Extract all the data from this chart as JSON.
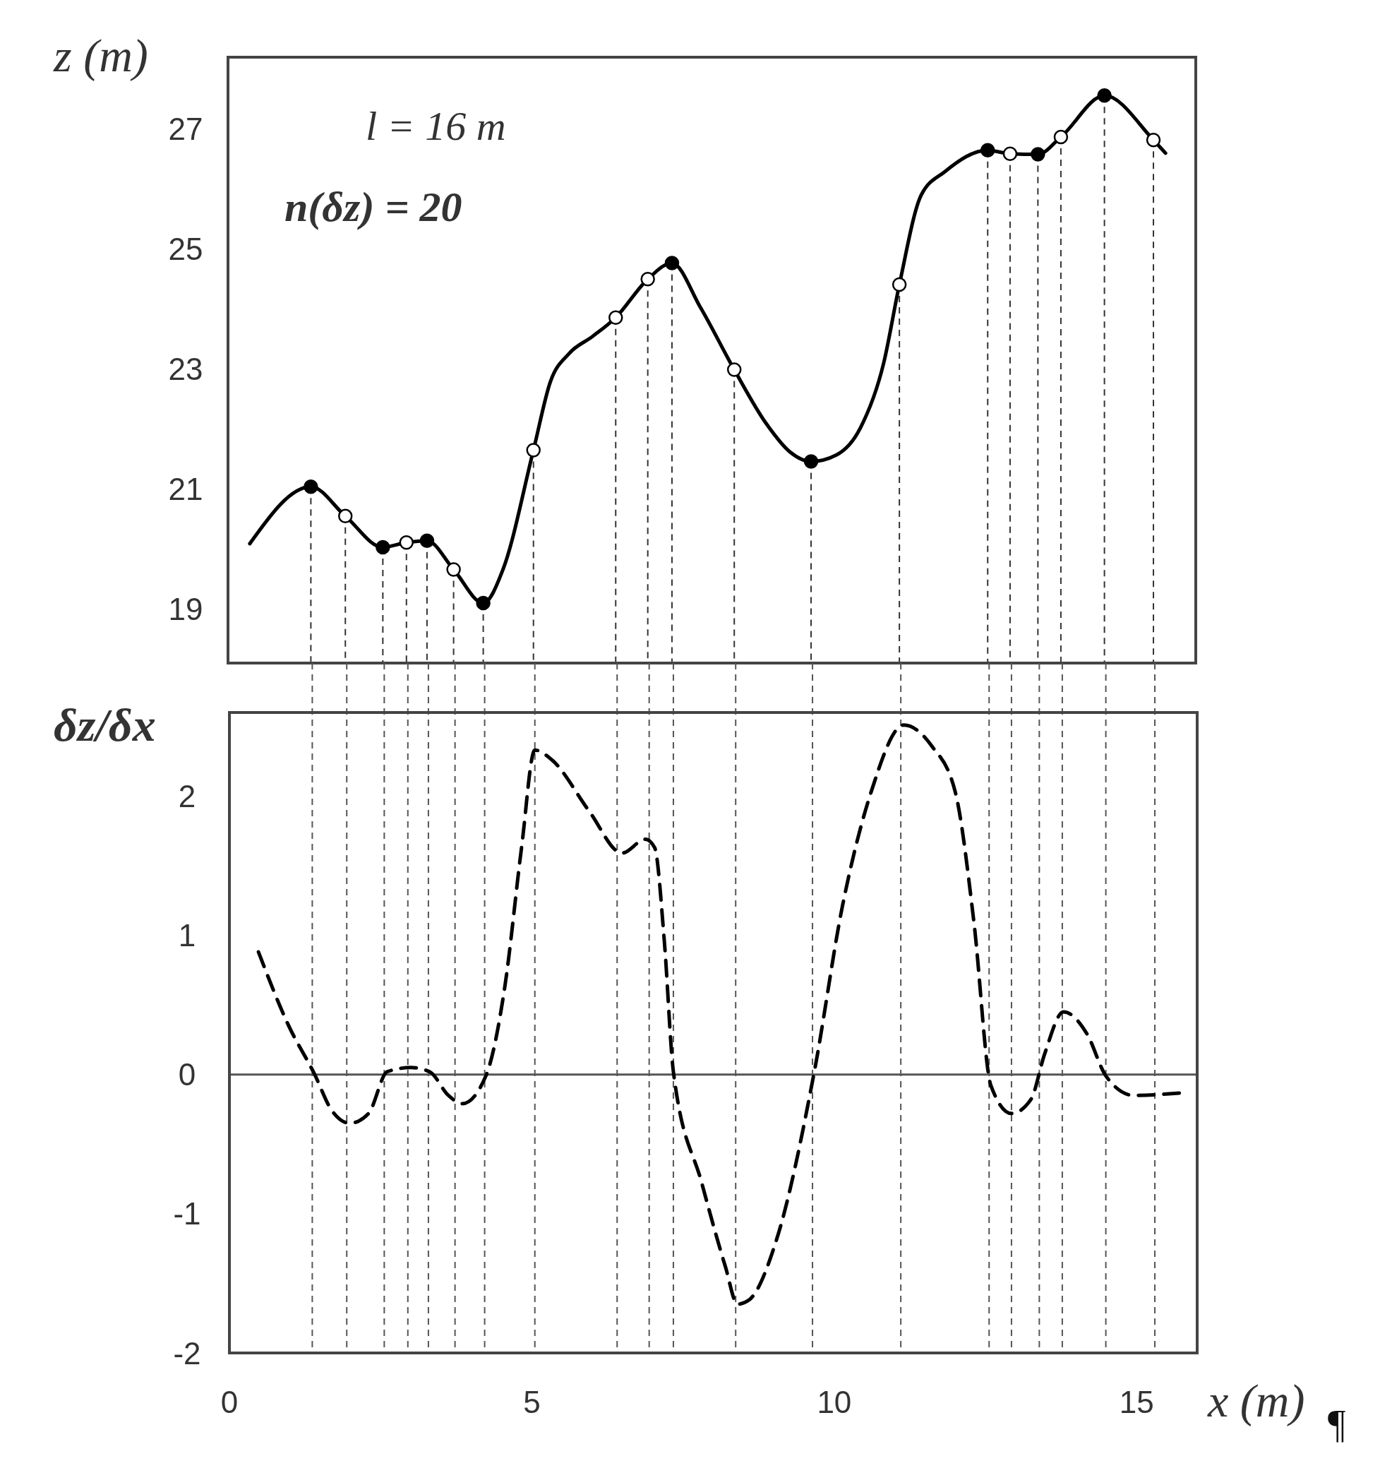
{
  "chart_data": [
    {
      "type": "line",
      "ylabel": "z (m)",
      "xlim": [
        0,
        16
      ],
      "ylim": [
        18.1,
        28.2
      ],
      "yticks": [
        19,
        21,
        23,
        25,
        27
      ],
      "tick_labels": "y",
      "annotations": [
        "l = 16 m",
        "n(δz) = 20"
      ],
      "series": [
        {
          "color": "#000000",
          "line_style": "solid",
          "x": [
            0.36,
            1.37,
            1.94,
            2.56,
            2.95,
            3.29,
            3.73,
            4.22,
            4.55,
            5.05,
            5.33,
            5.64,
            6.02,
            6.41,
            6.94,
            7.34,
            7.81,
            8.37,
            8.9,
            9.29,
            9.64,
            10.06,
            10.45,
            10.84,
            11.1,
            11.46,
            11.85,
            12.56,
            12.93,
            13.39,
            13.77,
            14.49,
            15.3,
            15.5
          ],
          "values": [
            20.09,
            21.04,
            20.55,
            20.03,
            20.11,
            20.14,
            19.66,
            19.1,
            19.67,
            21.65,
            22.79,
            23.26,
            23.54,
            23.86,
            24.5,
            24.77,
            24.03,
            22.99,
            22.09,
            21.62,
            21.46,
            21.57,
            22.01,
            23.1,
            24.41,
            25.9,
            26.29,
            26.65,
            26.59,
            26.58,
            26.87,
            27.56,
            26.82,
            26.6
          ]
        },
        {
          "type": "lollipop",
          "color": "#000000",
          "line_style": "dashed",
          "marker": "circle",
          "x": [
            1.37,
            2.56,
            3.29,
            4.22,
            7.34,
            9.64,
            12.56,
            13.39,
            14.49
          ],
          "values": [
            21.04,
            20.03,
            20.14,
            19.1,
            24.77,
            21.46,
            26.65,
            26.58,
            27.56
          ]
        },
        {
          "type": "lollipop",
          "color": "#ffffff",
          "line_style": "dashed",
          "marker": "circle",
          "x": [
            1.94,
            2.95,
            3.73,
            5.05,
            6.41,
            6.94,
            8.37,
            11.1,
            12.93,
            13.77,
            15.3
          ],
          "values": [
            20.55,
            20.11,
            19.66,
            21.65,
            23.86,
            24.5,
            22.99,
            24.41,
            26.59,
            26.87,
            26.82
          ]
        }
      ]
    },
    {
      "type": "line",
      "ylabel": "δz/δx",
      "xlabel": "x (m)",
      "xlim": [
        0,
        16
      ],
      "ylim": [
        -2,
        2.6
      ],
      "xticks": [
        0,
        5,
        10,
        15
      ],
      "yticks": [
        -2,
        -1,
        0,
        1,
        2
      ],
      "annotations": [
        "¶"
      ],
      "series": [
        {
          "color": "#000000",
          "line_style": "dashed",
          "x": [
            0.48,
            0.98,
            1.41,
            1.68,
            1.99,
            2.3,
            2.61,
            3.0,
            3.31,
            3.62,
            3.85,
            4.24,
            4.55,
            4.83,
            5.05,
            5.33,
            5.95,
            6.49,
            6.88,
            7.03,
            7.19,
            7.34,
            7.81,
            8.2,
            8.4,
            8.59,
            9.05,
            9.67,
            10.14,
            10.61,
            11.15,
            11.61,
            12.0,
            12.31,
            12.59,
            12.93,
            13.25,
            13.48,
            13.79,
            14.18,
            14.49,
            14.95,
            15.8
          ],
          "values": [
            0.88,
            0.35,
            0,
            -0.25,
            -0.35,
            -0.28,
            0.02,
            0.05,
            0.02,
            -0.15,
            -0.21,
            -0.01,
            0.62,
            1.63,
            2.33,
            2.26,
            1.89,
            1.59,
            1.69,
            1.63,
            0.96,
            0.02,
            -0.78,
            -1.38,
            -1.65,
            -1.62,
            -1.18,
            0.02,
            1.22,
            2.03,
            2.51,
            2.36,
            2.03,
            1.09,
            -0.08,
            -0.28,
            -0.18,
            0.15,
            0.45,
            0.29,
            -0.01,
            -0.15,
            -0.13
          ]
        }
      ],
      "ref_lines": [
        {
          "axis": "y",
          "value": 0,
          "color": "#555555",
          "line_style": "solid"
        },
        {
          "axis": "x",
          "value": 1.37,
          "color": "#555555",
          "line_style": "dashed"
        },
        {
          "axis": "x",
          "value": 1.94,
          "color": "#555555",
          "line_style": "dashed"
        },
        {
          "axis": "x",
          "value": 2.56,
          "color": "#555555",
          "line_style": "dashed"
        },
        {
          "axis": "x",
          "value": 2.95,
          "color": "#555555",
          "line_style": "dashed"
        },
        {
          "axis": "x",
          "value": 3.29,
          "color": "#555555",
          "line_style": "dashed"
        },
        {
          "axis": "x",
          "value": 3.73,
          "color": "#555555",
          "line_style": "dashed"
        },
        {
          "axis": "x",
          "value": 4.22,
          "color": "#555555",
          "line_style": "dashed"
        },
        {
          "axis": "x",
          "value": 5.05,
          "color": "#555555",
          "line_style": "dashed"
        },
        {
          "axis": "x",
          "value": 6.41,
          "color": "#555555",
          "line_style": "dashed"
        },
        {
          "axis": "x",
          "value": 6.94,
          "color": "#555555",
          "line_style": "dashed"
        },
        {
          "axis": "x",
          "value": 7.34,
          "color": "#555555",
          "line_style": "dashed"
        },
        {
          "axis": "x",
          "value": 8.37,
          "color": "#555555",
          "line_style": "dashed"
        },
        {
          "axis": "x",
          "value": 9.64,
          "color": "#555555",
          "line_style": "dashed"
        },
        {
          "axis": "x",
          "value": 11.1,
          "color": "#555555",
          "line_style": "dashed"
        },
        {
          "axis": "x",
          "value": 12.56,
          "color": "#555555",
          "line_style": "dashed"
        },
        {
          "axis": "x",
          "value": 12.93,
          "color": "#555555",
          "line_style": "dashed"
        },
        {
          "axis": "x",
          "value": 13.39,
          "color": "#555555",
          "line_style": "dashed"
        },
        {
          "axis": "x",
          "value": 13.77,
          "color": "#555555",
          "line_style": "dashed"
        },
        {
          "axis": "x",
          "value": 14.49,
          "color": "#555555",
          "line_style": "dashed"
        },
        {
          "axis": "x",
          "value": 15.3,
          "color": "#555555",
          "line_style": "dashed"
        }
      ]
    }
  ]
}
